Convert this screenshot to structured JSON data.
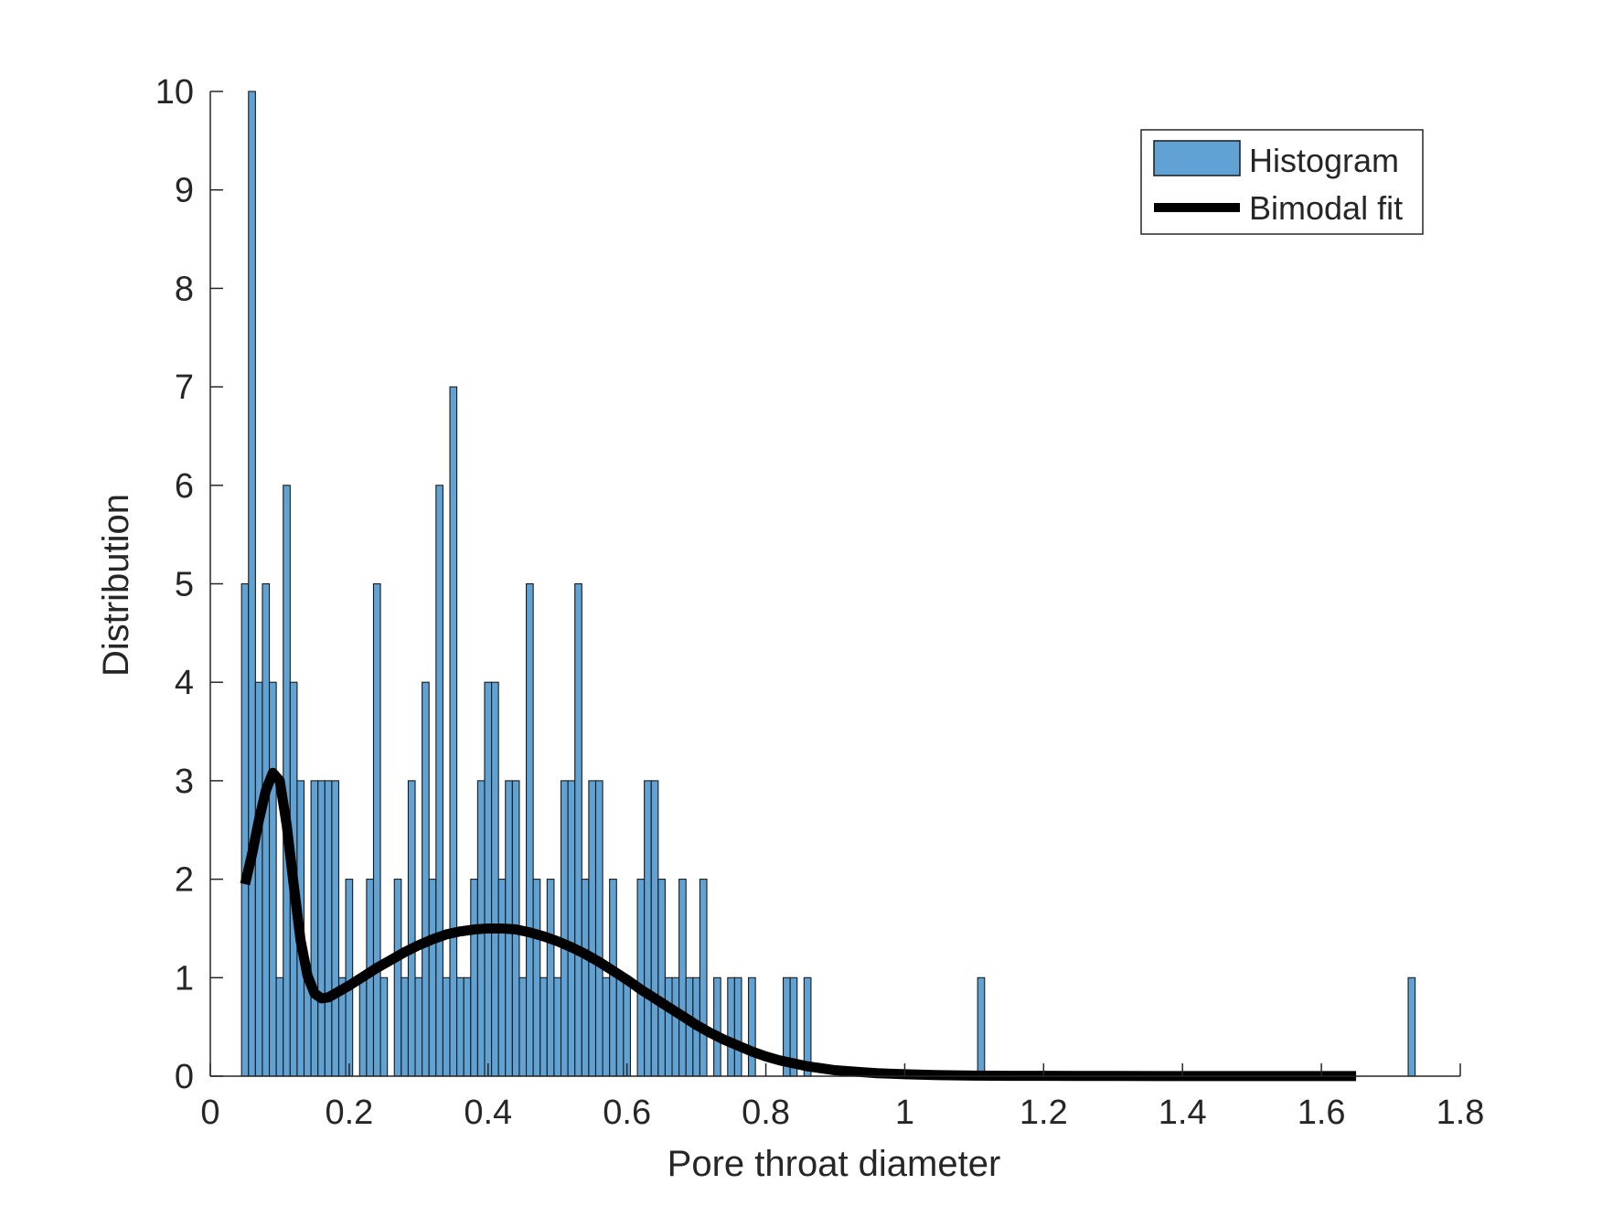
{
  "chart_data": {
    "type": "bar",
    "xlabel": "Pore throat diameter",
    "ylabel": "Distribution",
    "xlim": [
      0,
      1.8
    ],
    "ylim": [
      0,
      10
    ],
    "xticks": [
      0,
      0.2,
      0.4,
      0.6,
      0.8,
      1,
      1.2,
      1.4,
      1.6,
      1.8
    ],
    "xtick_labels": [
      "0",
      "0.2",
      "0.4",
      "0.6",
      "0.8",
      "1",
      "1.2",
      "1.4",
      "1.6",
      "1.8"
    ],
    "yticks": [
      0,
      1,
      2,
      3,
      4,
      5,
      6,
      7,
      8,
      9,
      10
    ],
    "ytick_labels": [
      "0",
      "1",
      "2",
      "3",
      "4",
      "5",
      "6",
      "7",
      "8",
      "9",
      "10"
    ],
    "grid": false,
    "legend_position": "top-right",
    "colors": {
      "bar_fill": "#5fa2d3",
      "bar_edge": "#1a1a1a",
      "fit_line": "#000000",
      "axis": "#262626"
    },
    "series": [
      {
        "name": "Histogram",
        "kind": "histogram",
        "bin_start": 0.045,
        "bin_width": 0.01,
        "counts": [
          5,
          10,
          4,
          5,
          4,
          1,
          6,
          4,
          3,
          1,
          3,
          3,
          3,
          3,
          1,
          2,
          0,
          1,
          2,
          5,
          1,
          0,
          2,
          1,
          3,
          1,
          4,
          2,
          6,
          1,
          7,
          1,
          1,
          2,
          3,
          4,
          4,
          2,
          3,
          3,
          1,
          5,
          2,
          1,
          2,
          1,
          3,
          3,
          5,
          2,
          3,
          3,
          1,
          2,
          1,
          1,
          0,
          2,
          3,
          3,
          2,
          1,
          1,
          2,
          1,
          1,
          2,
          0,
          1,
          0,
          1,
          1,
          0,
          1,
          0,
          0,
          0,
          0,
          1,
          1,
          0,
          1,
          0,
          0,
          0,
          0,
          0,
          0,
          0,
          0,
          0,
          0,
          0,
          0,
          0,
          0,
          0,
          0,
          0,
          0,
          0,
          0,
          0,
          0,
          0,
          0,
          1,
          0,
          0,
          0,
          0,
          0,
          0,
          0,
          0,
          0,
          0,
          0,
          0,
          0,
          0,
          0,
          0,
          0,
          0,
          0,
          0,
          0,
          0,
          0,
          0,
          0,
          0,
          0,
          0,
          0,
          0,
          0,
          0,
          0,
          0,
          0,
          0,
          0,
          0,
          0,
          0,
          0,
          0,
          0,
          0,
          0,
          0,
          0,
          0,
          0,
          0,
          0,
          0,
          0,
          0,
          0,
          0,
          0,
          0,
          0,
          0,
          0,
          1
        ]
      },
      {
        "name": "Bimodal fit",
        "kind": "line",
        "x": [
          0.05,
          0.06,
          0.07,
          0.08,
          0.09,
          0.1,
          0.11,
          0.12,
          0.13,
          0.14,
          0.15,
          0.16,
          0.17,
          0.18,
          0.2,
          0.22,
          0.24,
          0.26,
          0.28,
          0.3,
          0.32,
          0.34,
          0.36,
          0.38,
          0.4,
          0.42,
          0.44,
          0.46,
          0.48,
          0.5,
          0.52,
          0.54,
          0.56,
          0.58,
          0.6,
          0.62,
          0.64,
          0.66,
          0.68,
          0.7,
          0.72,
          0.74,
          0.76,
          0.78,
          0.8,
          0.82,
          0.84,
          0.86,
          0.88,
          0.9,
          0.92,
          0.94,
          0.96,
          0.98,
          1.0,
          1.05,
          1.1,
          1.15,
          1.2,
          1.25,
          1.3,
          1.4,
          1.5,
          1.6,
          1.65
        ],
        "y": [
          1.95,
          2.25,
          2.6,
          2.9,
          3.08,
          3.0,
          2.55,
          1.95,
          1.38,
          1.02,
          0.84,
          0.79,
          0.8,
          0.84,
          0.92,
          1.01,
          1.1,
          1.18,
          1.26,
          1.33,
          1.39,
          1.44,
          1.47,
          1.49,
          1.5,
          1.5,
          1.49,
          1.46,
          1.42,
          1.37,
          1.31,
          1.24,
          1.16,
          1.07,
          0.98,
          0.88,
          0.79,
          0.7,
          0.61,
          0.52,
          0.44,
          0.37,
          0.31,
          0.25,
          0.2,
          0.16,
          0.13,
          0.1,
          0.08,
          0.06,
          0.05,
          0.04,
          0.03,
          0.025,
          0.02,
          0.01,
          0.006,
          0.004,
          0.003,
          0.002,
          0.002,
          0.001,
          0.001,
          0.001,
          0.001
        ]
      }
    ]
  }
}
